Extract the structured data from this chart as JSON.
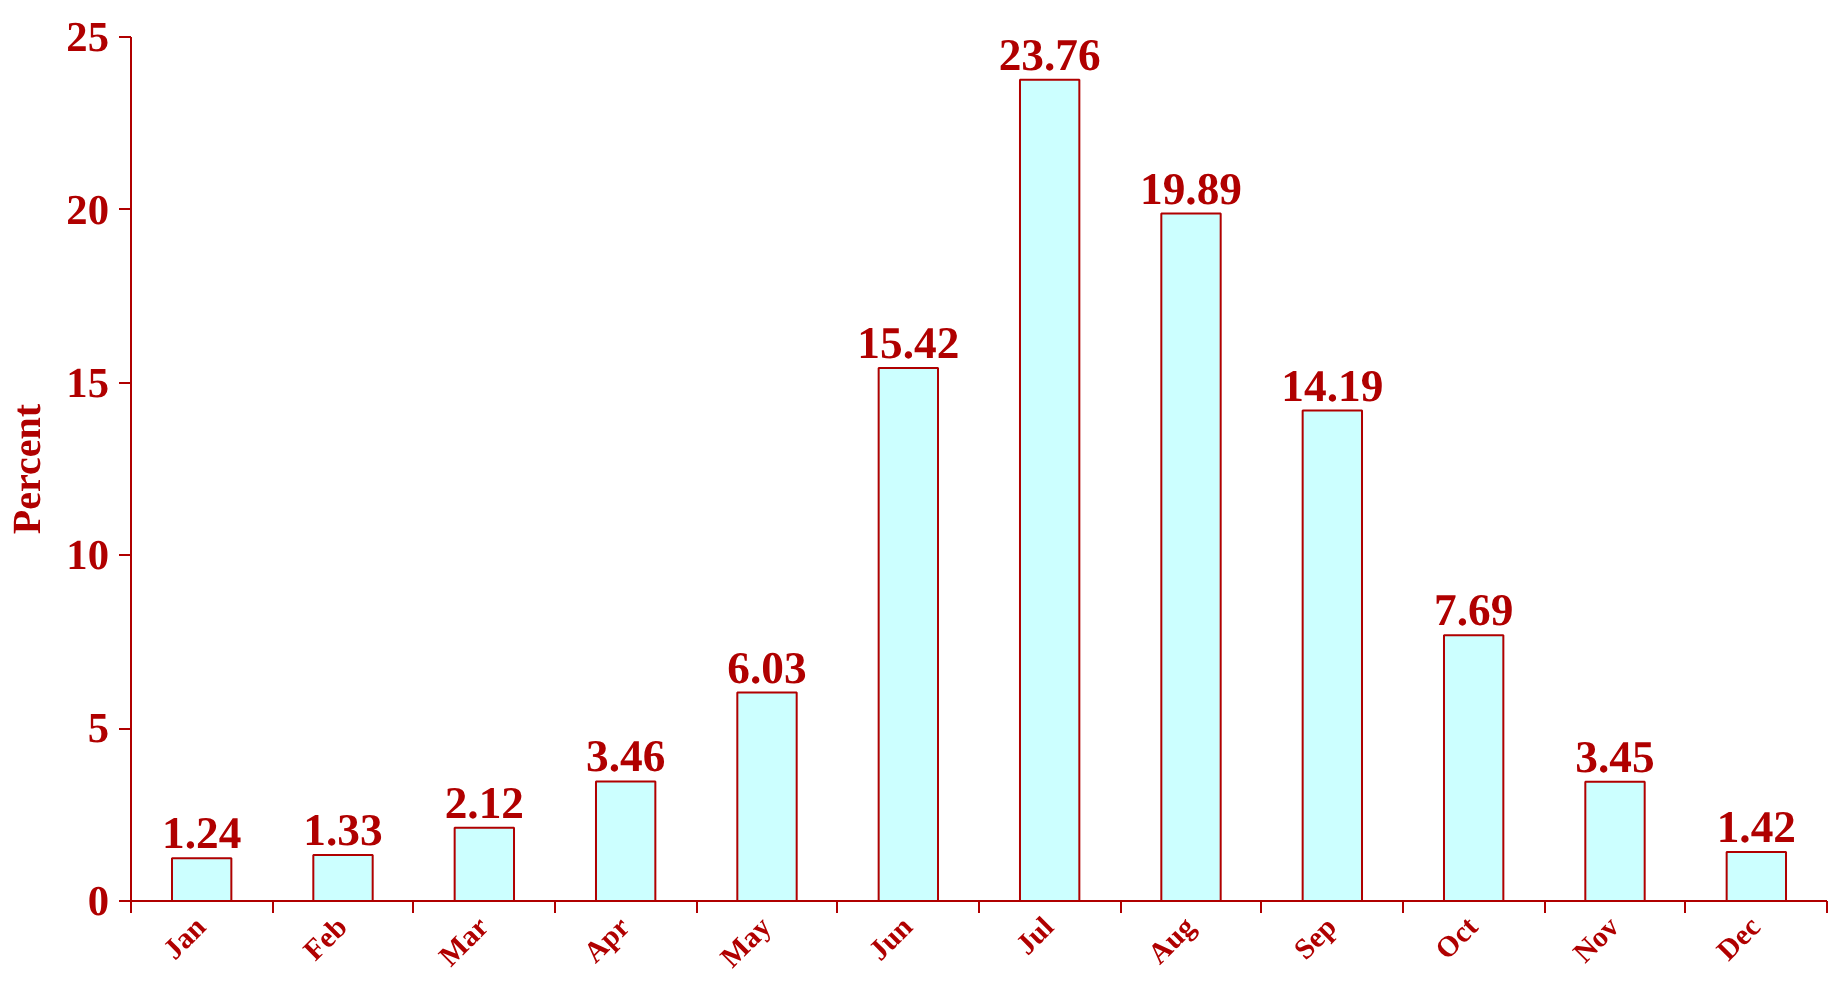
{
  "chart_data": {
    "type": "bar",
    "ylabel": "Percent",
    "categories": [
      "Jan",
      "Feb",
      "Mar",
      "Apr",
      "May",
      "Jun",
      "Jul",
      "Aug",
      "Sep",
      "Oct",
      "Nov",
      "Dec"
    ],
    "values": [
      1.24,
      1.33,
      2.12,
      3.46,
      6.03,
      15.42,
      23.76,
      19.89,
      14.19,
      7.69,
      3.45,
      1.42
    ],
    "color": "#ccffff",
    "data_labels": true,
    "ylim": [
      0,
      25
    ],
    "yticks": [
      0,
      5,
      10,
      15,
      20,
      25
    ],
    "grid": false
  }
}
